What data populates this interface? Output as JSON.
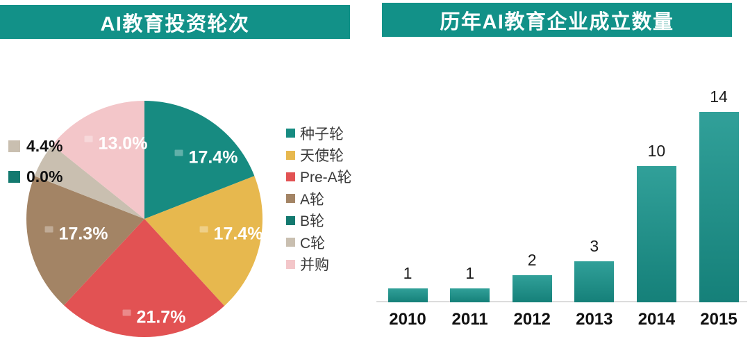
{
  "left_panel": {
    "title": "AI教育投资轮次"
  },
  "right_panel": {
    "title": "历年AI教育企业成立数量"
  },
  "colors": {
    "title_bar_bg": "#129188",
    "title_text": "#ffffff",
    "bar_fill_top": "#31a099",
    "bar_fill_bottom": "#158079",
    "axis_baseline": "#dcdcdc",
    "value_label": "#1c1c1c",
    "category_label": "#111111",
    "pie_inside_label": "#ffffff",
    "callout_label": "#111111",
    "legend_label": "#3a3a3a"
  },
  "chart_data": [
    {
      "type": "pie",
      "title": "AI教育投资轮次",
      "legend_position": "right",
      "start_angle_deg": 0,
      "direction": "clockwise",
      "slices": [
        {
          "name": "种子轮",
          "pct": 17.4,
          "label": "17.4%",
          "color": "#178b81",
          "label_style": "inside",
          "label_offset": [
            89,
            -88
          ]
        },
        {
          "name": "天使轮",
          "pct": 17.4,
          "label": "17.4%",
          "color": "#e7b84e",
          "label_style": "inside",
          "label_offset": [
            125,
            22
          ]
        },
        {
          "name": "Pre-A轮",
          "pct": 21.7,
          "label": "21.7%",
          "color": "#e25253",
          "label_style": "inside",
          "label_offset": [
            14,
            142
          ]
        },
        {
          "name": "A轮",
          "pct": 17.3,
          "label": "17.3%",
          "color": "#a38465",
          "label_style": "inside",
          "label_offset": [
            -98,
            22
          ]
        },
        {
          "name": "B轮",
          "pct": 0.0,
          "label": "0.0%",
          "color": "#13796f",
          "label_style": "callout",
          "callout_pos": [
            12,
            241
          ]
        },
        {
          "name": "C轮",
          "pct": 4.4,
          "label": "4.4%",
          "color": "#c9bfb0",
          "label_style": "callout",
          "callout_pos": [
            12,
            197
          ]
        },
        {
          "name": "并购",
          "pct": 13.0,
          "label": "13.0%",
          "color": "#f3c6c9",
          "label_style": "inside",
          "label_offset": [
            -41,
            -108
          ]
        }
      ]
    },
    {
      "type": "bar",
      "title": "历年AI教育企业成立数量",
      "categories": [
        "2010",
        "2011",
        "2012",
        "2013",
        "2014",
        "2015"
      ],
      "values": [
        1,
        1,
        2,
        3,
        10,
        14
      ],
      "ylim": [
        0,
        14
      ],
      "grid": false,
      "legend": "none"
    }
  ]
}
